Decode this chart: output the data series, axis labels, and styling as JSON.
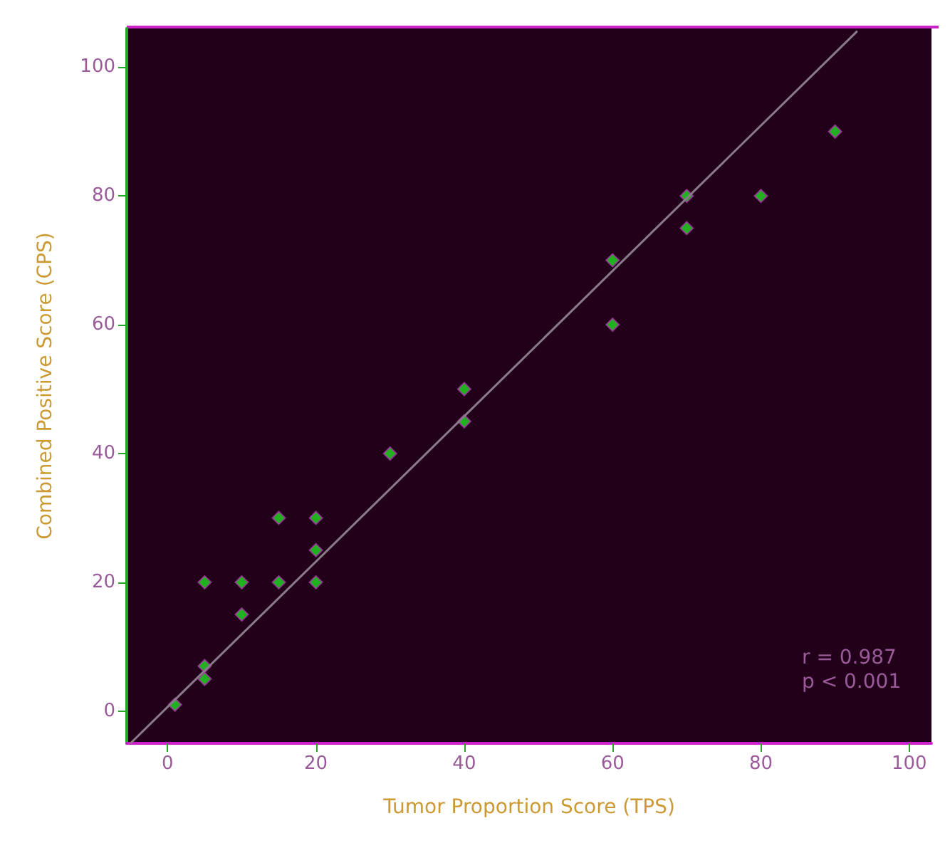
{
  "chart_data": {
    "type": "scatter",
    "xlabel": "Tumor Proportion Score (TPS)",
    "ylabel": "Combined Positive Score (CPS)",
    "xlim": [
      -5.5,
      103
    ],
    "ylim": [
      -5,
      106
    ],
    "xticks": [
      0,
      20,
      40,
      60,
      80,
      100
    ],
    "yticks": [
      0,
      20,
      40,
      60,
      80,
      100
    ],
    "grid": false,
    "marker": "diamond",
    "annotations": [
      "r = 0.987",
      "p < 0.001"
    ],
    "series": [
      {
        "color": "#22dd22",
        "x": [
          1,
          5,
          5,
          5,
          10,
          10,
          15,
          15,
          20,
          20,
          20,
          30,
          40,
          40,
          60,
          60,
          70,
          70,
          80,
          90
        ],
        "values": [
          1,
          7,
          5,
          20,
          20,
          15,
          30,
          20,
          30,
          25,
          20,
          40,
          50,
          45,
          70,
          60,
          80,
          75,
          80,
          90
        ]
      },
      {
        "type": "line",
        "color": "#8a7a8a",
        "line_style": "solid",
        "marker": "none",
        "x": [
          -5,
          93
        ],
        "values": [
          -5,
          105.6
        ]
      }
    ]
  }
}
